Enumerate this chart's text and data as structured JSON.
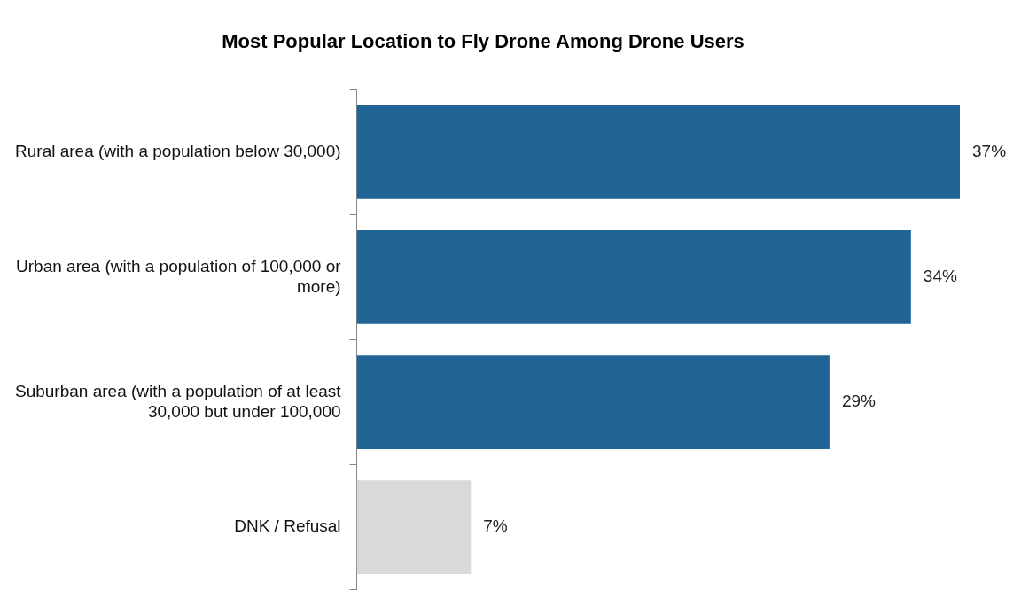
{
  "chart_data": {
    "type": "bar",
    "orientation": "horizontal",
    "title": "Most Popular Location to Fly Drone Among Drone Users",
    "categories": [
      "Rural area (with a population below 30,000)",
      "Urban area (with a population of 100,000 or more)",
      "Suburban area (with a population of at least 30,000 but under 100,000",
      "DNK / Refusal"
    ],
    "values": [
      37,
      34,
      29,
      7
    ],
    "colors": [
      "#216496",
      "#216496",
      "#216496",
      "#d9d9d9"
    ],
    "value_labels": [
      "37%",
      "34%",
      "29%",
      "7%"
    ],
    "grid": false,
    "legend": false,
    "tick_labels": "y"
  }
}
